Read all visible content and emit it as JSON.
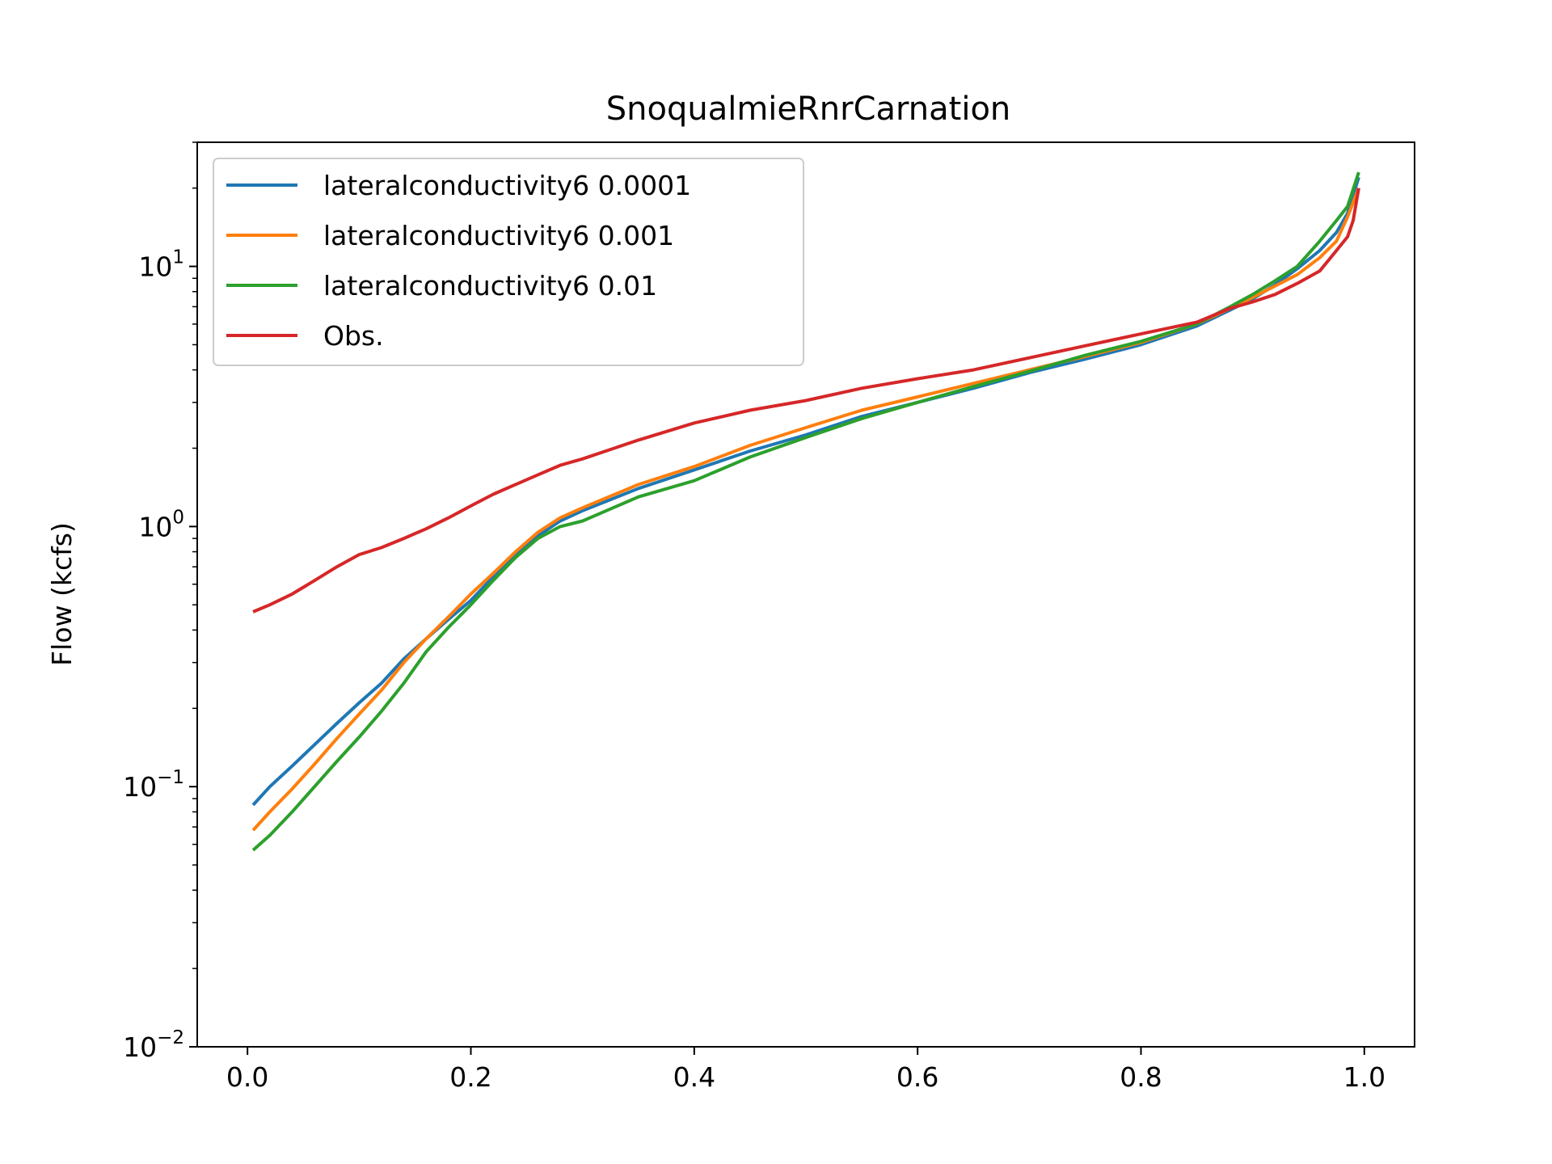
{
  "chart_data": {
    "type": "line",
    "title": "SnoqualmieRnrCarnation",
    "xlabel": "",
    "ylabel": "Flow (kcfs)",
    "xlim": [
      -0.045,
      1.045
    ],
    "ylim": [
      0.01,
      30
    ],
    "yscale": "log",
    "grid": false,
    "legend_position": "upper-left",
    "x_ticks": [
      {
        "value": 0.0,
        "label": "0.0"
      },
      {
        "value": 0.2,
        "label": "0.2"
      },
      {
        "value": 0.4,
        "label": "0.4"
      },
      {
        "value": 0.6,
        "label": "0.6"
      },
      {
        "value": 0.8,
        "label": "0.8"
      },
      {
        "value": 1.0,
        "label": "1.0"
      }
    ],
    "y_ticks": [
      {
        "value": 0.01,
        "base": "10",
        "exp": "−2"
      },
      {
        "value": 0.1,
        "base": "10",
        "exp": "−1"
      },
      {
        "value": 1,
        "base": "10",
        "exp": "0"
      },
      {
        "value": 10,
        "base": "10",
        "exp": "1"
      }
    ],
    "series": [
      {
        "name": "lateralconductivity6 0.0001",
        "color": "#1f77b4",
        "x": [
          0.005,
          0.02,
          0.04,
          0.06,
          0.08,
          0.1,
          0.12,
          0.14,
          0.16,
          0.18,
          0.2,
          0.22,
          0.24,
          0.26,
          0.28,
          0.3,
          0.35,
          0.4,
          0.45,
          0.5,
          0.55,
          0.6,
          0.65,
          0.7,
          0.75,
          0.8,
          0.85,
          0.88,
          0.9,
          0.92,
          0.94,
          0.96,
          0.975,
          0.985,
          0.995
        ],
        "y": [
          0.085,
          0.1,
          0.12,
          0.145,
          0.175,
          0.21,
          0.25,
          0.31,
          0.37,
          0.44,
          0.52,
          0.64,
          0.78,
          0.92,
          1.05,
          1.15,
          1.4,
          1.65,
          1.95,
          2.25,
          2.65,
          3.0,
          3.4,
          3.9,
          4.4,
          5.0,
          5.9,
          6.8,
          7.5,
          8.5,
          9.8,
          11.5,
          13.5,
          16.0,
          22.0
        ]
      },
      {
        "name": "lateralconductivity6 0.001",
        "color": "#ff7f0e",
        "x": [
          0.005,
          0.02,
          0.04,
          0.06,
          0.08,
          0.1,
          0.12,
          0.14,
          0.16,
          0.18,
          0.2,
          0.22,
          0.24,
          0.26,
          0.28,
          0.3,
          0.35,
          0.4,
          0.45,
          0.5,
          0.55,
          0.6,
          0.65,
          0.7,
          0.75,
          0.8,
          0.85,
          0.88,
          0.9,
          0.92,
          0.94,
          0.96,
          0.975,
          0.985,
          0.995
        ],
        "y": [
          0.068,
          0.08,
          0.098,
          0.122,
          0.153,
          0.19,
          0.235,
          0.3,
          0.37,
          0.45,
          0.55,
          0.66,
          0.8,
          0.95,
          1.08,
          1.18,
          1.45,
          1.7,
          2.05,
          2.4,
          2.8,
          3.15,
          3.55,
          4.0,
          4.5,
          5.1,
          6.0,
          6.9,
          7.6,
          8.4,
          9.3,
          10.8,
          12.5,
          15.5,
          20.0
        ]
      },
      {
        "name": "lateralconductivity6 0.01",
        "color": "#2ca02c",
        "x": [
          0.005,
          0.02,
          0.04,
          0.06,
          0.08,
          0.1,
          0.12,
          0.14,
          0.16,
          0.18,
          0.2,
          0.22,
          0.24,
          0.26,
          0.28,
          0.3,
          0.35,
          0.4,
          0.45,
          0.5,
          0.55,
          0.6,
          0.65,
          0.7,
          0.75,
          0.8,
          0.85,
          0.88,
          0.9,
          0.92,
          0.94,
          0.96,
          0.975,
          0.985,
          0.995
        ],
        "y": [
          0.057,
          0.065,
          0.08,
          0.1,
          0.125,
          0.155,
          0.195,
          0.25,
          0.33,
          0.41,
          0.5,
          0.62,
          0.76,
          0.9,
          1.0,
          1.05,
          1.3,
          1.5,
          1.85,
          2.2,
          2.6,
          3.0,
          3.45,
          3.95,
          4.55,
          5.15,
          6.0,
          7.0,
          7.8,
          8.8,
          10.0,
          12.5,
          15.0,
          17.0,
          23.0
        ]
      },
      {
        "name": "Obs.",
        "color": "#d62728",
        "x": [
          0.005,
          0.02,
          0.04,
          0.06,
          0.08,
          0.1,
          0.12,
          0.14,
          0.16,
          0.18,
          0.2,
          0.22,
          0.24,
          0.26,
          0.28,
          0.3,
          0.35,
          0.4,
          0.45,
          0.5,
          0.55,
          0.6,
          0.65,
          0.7,
          0.75,
          0.8,
          0.85,
          0.88,
          0.9,
          0.92,
          0.94,
          0.96,
          0.975,
          0.985,
          0.99,
          0.995
        ],
        "y": [
          0.47,
          0.5,
          0.55,
          0.62,
          0.7,
          0.78,
          0.83,
          0.9,
          0.98,
          1.08,
          1.2,
          1.33,
          1.45,
          1.58,
          1.72,
          1.82,
          2.15,
          2.5,
          2.8,
          3.05,
          3.4,
          3.7,
          4.0,
          4.45,
          4.95,
          5.5,
          6.1,
          6.9,
          7.3,
          7.8,
          8.6,
          9.6,
          11.5,
          13.0,
          15.0,
          20.0
        ]
      }
    ]
  }
}
